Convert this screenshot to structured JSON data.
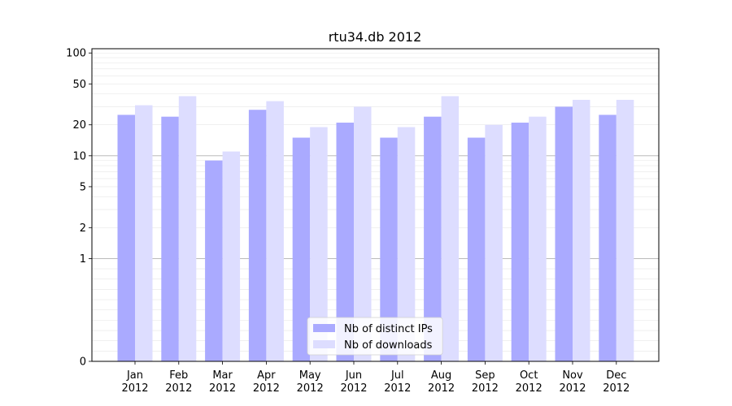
{
  "chart_data": {
    "type": "bar",
    "title": "rtu34.db 2012",
    "xlabel": "",
    "ylabel": "",
    "y_scale": "symlog",
    "ylim": [
      0,
      110
    ],
    "y_ticks": [
      0,
      1,
      2,
      5,
      10,
      20,
      50,
      100
    ],
    "y_tick_labels": [
      "0",
      "1",
      "2",
      "5",
      "10",
      "20",
      "50",
      "100"
    ],
    "categories": [
      "Jan\n2012",
      "Feb\n2012",
      "Mar\n2012",
      "Apr\n2012",
      "May\n2012",
      "Jun\n2012",
      "Jul\n2012",
      "Aug\n2012",
      "Sep\n2012",
      "Oct\n2012",
      "Nov\n2012",
      "Dec\n2012"
    ],
    "series": [
      {
        "name": "Nb of distinct IPs",
        "color": "#aaaaff",
        "values": [
          25,
          24,
          9,
          28,
          15,
          21,
          15,
          24,
          15,
          21,
          30,
          25
        ]
      },
      {
        "name": "Nb of downloads",
        "color": "#ddddff",
        "values": [
          31,
          38,
          11,
          34,
          19,
          30,
          19,
          38,
          20,
          24,
          35,
          35
        ]
      }
    ],
    "grid": true,
    "legend_position": "lower-center"
  }
}
